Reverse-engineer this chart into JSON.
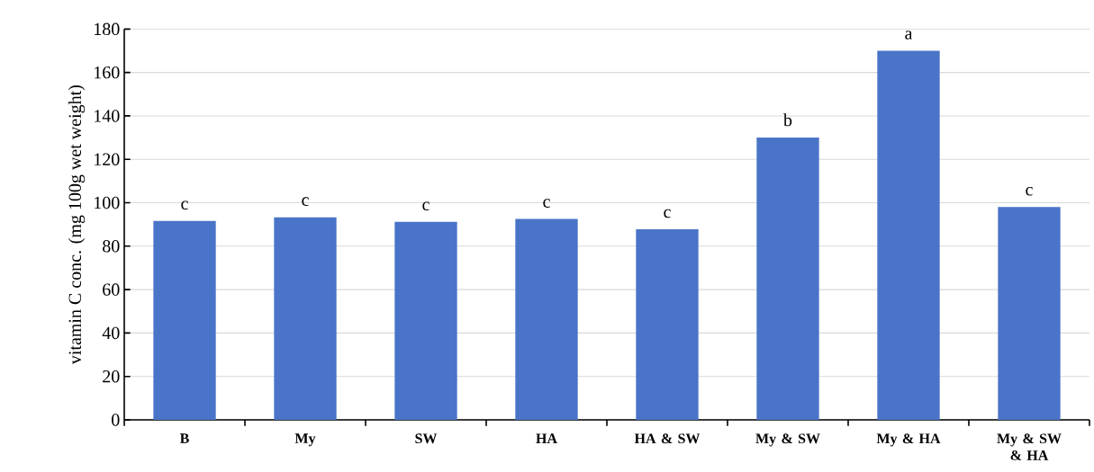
{
  "chart_data": {
    "type": "bar",
    "ylabel": "vitamin C conc. (mg 100g wet weight)",
    "categories": [
      "B",
      "My",
      "SW",
      "HA",
      "HA & SW",
      "My & SW",
      "My & HA",
      "My & SW & HA"
    ],
    "values": [
      91.6,
      93.3,
      91.2,
      92.5,
      87.8,
      130,
      170,
      98
    ],
    "color": "#4a74c8",
    "ylim": [
      0,
      180
    ],
    "yticks": [
      0,
      20,
      40,
      60,
      80,
      100,
      120,
      140,
      160,
      180
    ],
    "grid": "y",
    "annotations": [
      {
        "text": "c",
        "x": "B",
        "y": 91.6
      },
      {
        "text": "c",
        "x": "My",
        "y": 93.3
      },
      {
        "text": "c",
        "x": "SW",
        "y": 91.2
      },
      {
        "text": "c",
        "x": "HA",
        "y": 92.5
      },
      {
        "text": "c",
        "x": "HA & SW",
        "y": 87.8
      },
      {
        "text": "b",
        "x": "My & SW",
        "y": 130
      },
      {
        "text": "a",
        "x": "My & HA",
        "y": 170
      },
      {
        "text": "c",
        "x": "My & SW & HA",
        "y": 98
      }
    ]
  }
}
